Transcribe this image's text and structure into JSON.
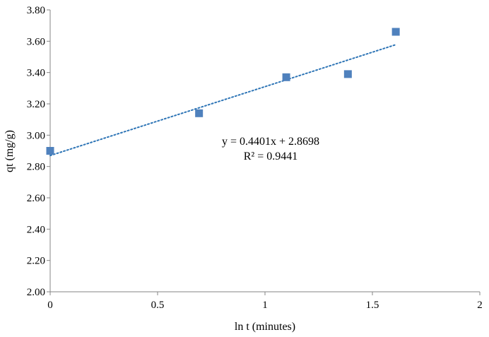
{
  "chart_data": {
    "type": "scatter",
    "title": "",
    "xlabel": "ln t (minutes)",
    "ylabel": "qt (mg/g)",
    "xlim": [
      0,
      2
    ],
    "ylim": [
      2.0,
      3.8
    ],
    "x_ticks": [
      0,
      0.5,
      1,
      1.5,
      2
    ],
    "x_tick_labels": [
      "0",
      "0.5",
      "1",
      "1.5",
      "2"
    ],
    "y_ticks": [
      2.0,
      2.2,
      2.4,
      2.6,
      2.8,
      3.0,
      3.2,
      3.4,
      3.6,
      3.8
    ],
    "y_tick_labels": [
      "2.00",
      "2.20",
      "2.40",
      "2.60",
      "2.80",
      "3.00",
      "3.20",
      "3.40",
      "3.60",
      "3.80"
    ],
    "grid": false,
    "legend": "none",
    "series": [
      {
        "name": "qt",
        "marker": "square",
        "color": "#4f81bd",
        "x": [
          0,
          0.693,
          1.099,
          1.386,
          1.609
        ],
        "y": [
          2.9,
          3.14,
          3.37,
          3.39,
          3.66
        ]
      }
    ],
    "trendline": {
      "type": "linear",
      "slope": 0.4401,
      "intercept": 2.8698,
      "x_range": [
        0,
        1.609
      ],
      "color": "#2e75b6",
      "style": "dotted"
    },
    "annotations": {
      "equation": "y = 0.4401x + 2.8698",
      "r_squared": "R² = 0.9441"
    }
  }
}
